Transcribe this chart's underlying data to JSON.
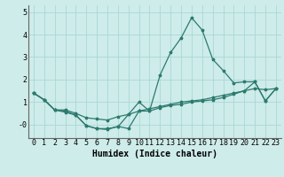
{
  "x": [
    0,
    1,
    2,
    3,
    4,
    5,
    6,
    7,
    8,
    9,
    10,
    11,
    12,
    13,
    14,
    15,
    16,
    17,
    18,
    19,
    20,
    21,
    22,
    23
  ],
  "line1": [
    1.4,
    1.1,
    0.65,
    0.55,
    0.42,
    -0.05,
    -0.18,
    -0.18,
    -0.1,
    0.45,
    1.0,
    0.6,
    2.2,
    3.2,
    3.85,
    4.75,
    4.2,
    2.9,
    2.4,
    1.85,
    1.9,
    1.9,
    1.05,
    1.6
  ],
  "line2": [
    1.4,
    1.1,
    0.65,
    0.65,
    0.5,
    0.3,
    0.25,
    0.2,
    0.35,
    0.45,
    0.6,
    0.7,
    0.8,
    0.9,
    1.0,
    1.05,
    1.1,
    1.2,
    1.3,
    1.4,
    1.5,
    1.6,
    1.55,
    1.6
  ],
  "line3": [
    1.4,
    1.1,
    0.65,
    0.6,
    0.42,
    -0.05,
    -0.18,
    -0.22,
    -0.08,
    -0.18,
    0.6,
    0.6,
    0.75,
    0.85,
    0.9,
    1.0,
    1.05,
    1.1,
    1.2,
    1.35,
    1.5,
    1.9,
    1.05,
    1.6
  ],
  "line_color": "#2d7a6e",
  "bg_color": "#ceecea",
  "grid_color": "#a8d8d5",
  "xlabel": "Humidex (Indice chaleur)",
  "xlabel_fontsize": 7,
  "tick_fontsize": 6,
  "ylim": [
    -0.6,
    5.3
  ],
  "xlim": [
    -0.5,
    23.5
  ],
  "yticks": [
    0,
    1,
    2,
    3,
    4,
    5
  ],
  "ytick_labels": [
    "-0",
    "1",
    "2",
    "3",
    "4",
    "5"
  ],
  "xticks": [
    0,
    1,
    2,
    3,
    4,
    5,
    6,
    7,
    8,
    9,
    10,
    11,
    12,
    13,
    14,
    15,
    16,
    17,
    18,
    19,
    20,
    21,
    22,
    23
  ]
}
